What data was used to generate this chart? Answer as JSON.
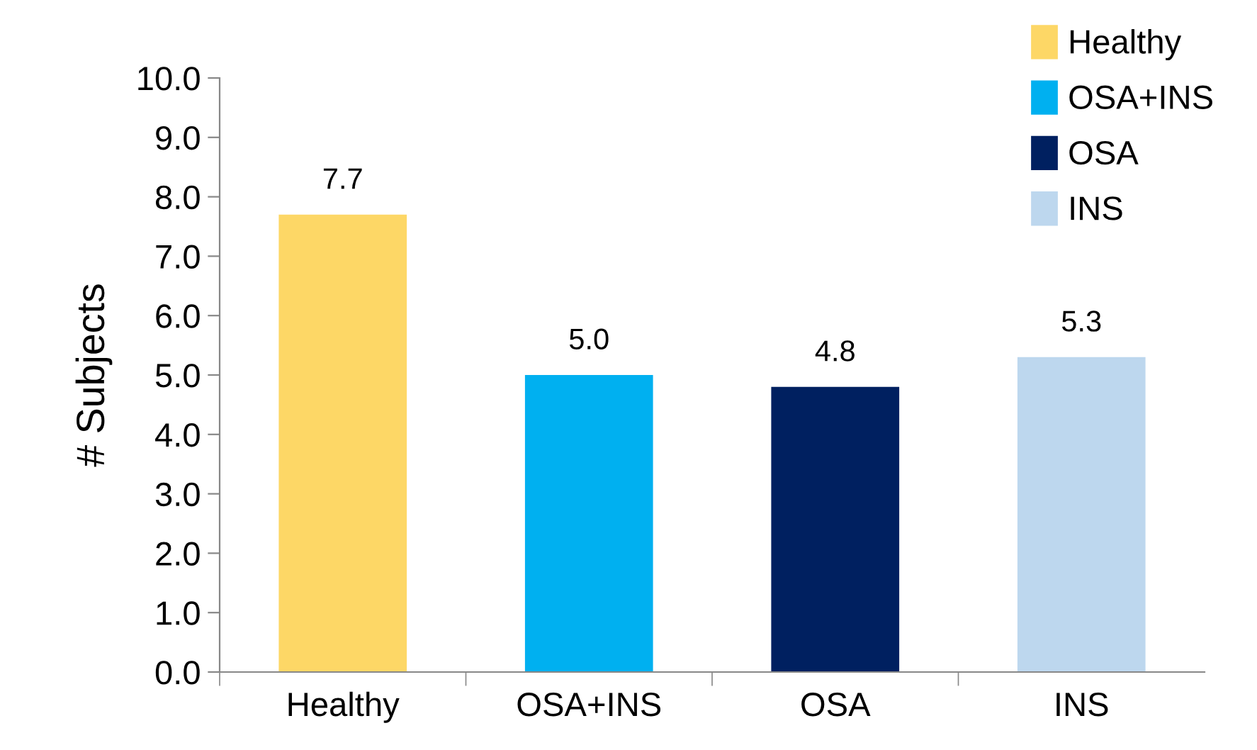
{
  "chart_data": {
    "type": "bar",
    "ylabel": "# Subjects",
    "categories": [
      "Healthy",
      "OSA+INS",
      "OSA",
      "INS"
    ],
    "series": [
      {
        "name": "Healthy",
        "color": "#fdd766",
        "values": [
          7.7,
          null,
          null,
          null
        ],
        "value_labels": [
          "7.7",
          null,
          null,
          null
        ]
      },
      {
        "name": "OSA+INS",
        "color": "#00b0f0",
        "values": [
          null,
          5.0,
          null,
          null
        ],
        "value_labels": [
          null,
          "5.0",
          null,
          null
        ]
      },
      {
        "name": "OSA",
        "color": "#002060",
        "values": [
          null,
          null,
          4.8,
          null
        ],
        "value_labels": [
          null,
          null,
          "4.8",
          null
        ]
      },
      {
        "name": "INS",
        "color": "#bdd7ee",
        "values": [
          null,
          null,
          null,
          5.3
        ],
        "value_labels": [
          null,
          null,
          null,
          "5.3"
        ]
      }
    ],
    "ylim": [
      0,
      10
    ],
    "yticks": [
      {
        "value": 0,
        "label": "0.0"
      },
      {
        "value": 1,
        "label": "1.0"
      },
      {
        "value": 2,
        "label": "2.0"
      },
      {
        "value": 3,
        "label": "3.0"
      },
      {
        "value": 4,
        "label": "4.0"
      },
      {
        "value": 5,
        "label": "5.0"
      },
      {
        "value": 6,
        "label": "6.0"
      },
      {
        "value": 7,
        "label": "7.0"
      },
      {
        "value": 8,
        "label": "8.0"
      },
      {
        "value": 9,
        "label": "9.0"
      },
      {
        "value": 10,
        "label": "10.0"
      }
    ],
    "grid": false,
    "legend": "top right"
  }
}
